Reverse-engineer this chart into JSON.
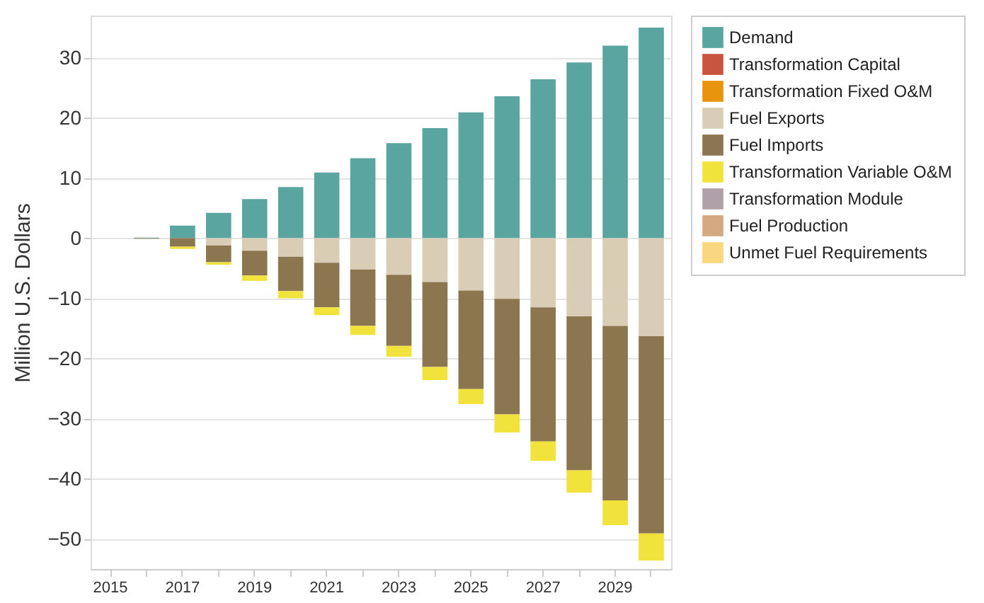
{
  "chart_data": {
    "type": "bar",
    "stacked": true,
    "ylabel": "Million U.S. Dollars",
    "categories": [
      "2015",
      null,
      "2017",
      null,
      "2019",
      null,
      "2021",
      null,
      "2023",
      null,
      "2025",
      null,
      "2027",
      null,
      "2029",
      null
    ],
    "series": [
      {
        "name": "Demand",
        "color": "#5ba5a0",
        "values": [
          null,
          0.1,
          2.1,
          4.2,
          6.5,
          8.5,
          10.9,
          13.3,
          15.8,
          18.3,
          20.9,
          23.6,
          26.4,
          29.2,
          32.0,
          35.0
        ]
      },
      {
        "name": "Transformation Capital",
        "color": "#c8553d",
        "values": [
          null,
          null,
          null,
          null,
          null,
          null,
          null,
          null,
          null,
          null,
          null,
          null,
          null,
          null,
          null,
          null
        ]
      },
      {
        "name": "Transformation Fixed O&M",
        "color": "#e8940f",
        "values": [
          null,
          null,
          null,
          null,
          null,
          null,
          null,
          null,
          null,
          null,
          null,
          null,
          null,
          null,
          null,
          null
        ]
      },
      {
        "name": "Fuel Exports",
        "color": "#d9cdb5",
        "values": [
          null,
          null,
          null,
          -1.2,
          -2.1,
          -3.1,
          -4.1,
          -5.2,
          -6.1,
          -7.3,
          -8.7,
          -10.1,
          -11.5,
          -13.0,
          -14.6,
          -16.3
        ]
      },
      {
        "name": "Fuel Imports",
        "color": "#8b7650",
        "values": [
          null,
          -0.1,
          -1.4,
          -2.8,
          -4.1,
          -5.7,
          -7.4,
          -9.4,
          -11.8,
          -14.1,
          -16.4,
          -19.2,
          -22.3,
          -25.6,
          -29.0,
          -32.8
        ]
      },
      {
        "name": "Transformation Variable O&M",
        "color": "#f2e23c",
        "values": [
          null,
          null,
          -0.4,
          -0.4,
          -0.9,
          -1.2,
          -1.3,
          -1.5,
          -1.8,
          -2.2,
          -2.5,
          -3.0,
          -3.2,
          -3.7,
          -4.1,
          -4.5
        ]
      },
      {
        "name": "Transformation Module",
        "color": "#b0a0a8",
        "values": [
          null,
          null,
          null,
          null,
          null,
          null,
          null,
          null,
          null,
          null,
          null,
          null,
          null,
          null,
          null,
          null
        ]
      },
      {
        "name": "Fuel Production",
        "color": "#d4a982",
        "values": [
          null,
          null,
          null,
          null,
          null,
          null,
          null,
          null,
          null,
          null,
          null,
          null,
          null,
          null,
          null,
          null
        ]
      },
      {
        "name": "Unmet Fuel Requirements",
        "color": "#f9d77e",
        "values": [
          null,
          null,
          null,
          null,
          null,
          null,
          null,
          null,
          null,
          null,
          null,
          null,
          null,
          null,
          null,
          null
        ]
      }
    ],
    "ylim": [
      -55,
      37
    ],
    "yticks": [
      -50,
      -40,
      -30,
      -20,
      -10,
      0,
      10,
      20,
      30
    ],
    "grid": "y",
    "legend": "top right"
  }
}
